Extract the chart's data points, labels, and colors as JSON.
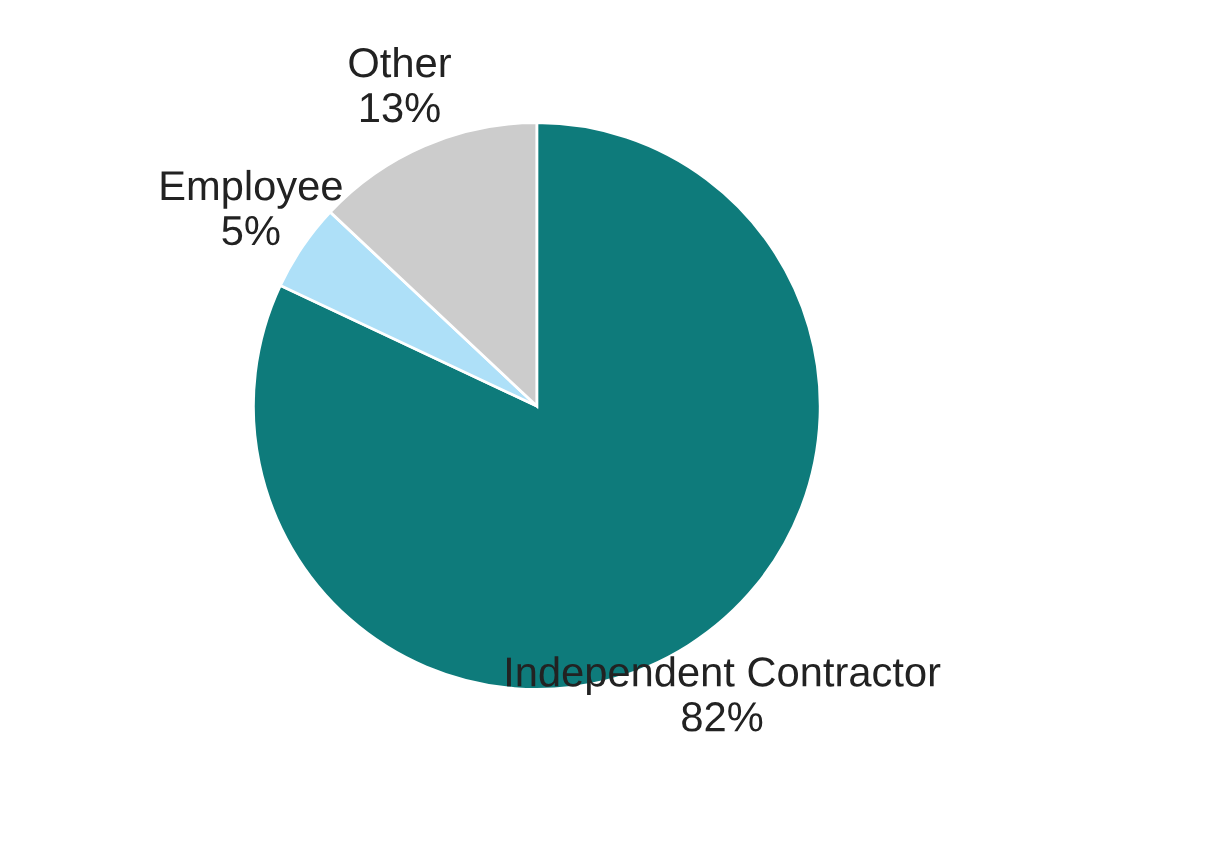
{
  "chart_data": {
    "type": "pie",
    "categories": [
      "Independent Contractor",
      "Employee",
      "Other"
    ],
    "values": [
      82,
      5,
      13
    ],
    "value_labels": [
      "82%",
      "5%",
      "13%"
    ],
    "colors": [
      "#0e7b7b",
      "#aee0f8",
      "#cccccc"
    ],
    "legend": false
  }
}
